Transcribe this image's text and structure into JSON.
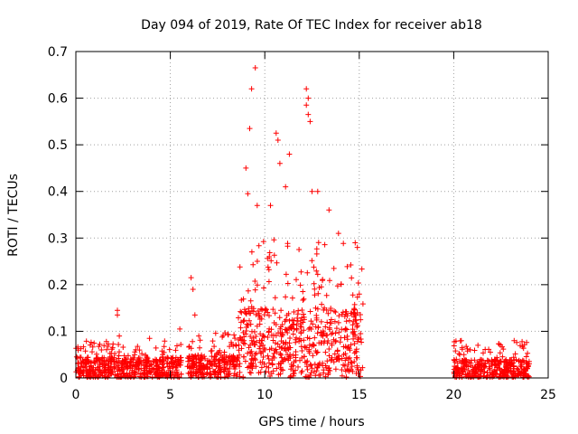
{
  "chart_data": {
    "type": "scatter",
    "title": "Day 094 of 2019, Rate Of TEC Index for receiver ab18",
    "xlabel": "GPS time / hours",
    "ylabel": "ROTI / TECUs",
    "xlim": [
      0,
      25
    ],
    "ylim": [
      0,
      0.7
    ],
    "xticks": [
      0,
      5,
      10,
      15,
      20,
      25
    ],
    "yticks": [
      0,
      0.1,
      0.2,
      0.3,
      0.4,
      0.5,
      0.6,
      0.7
    ],
    "xtick_labels": [
      "0",
      "5",
      "10",
      "15",
      "20",
      "25"
    ],
    "ytick_labels": [
      "0",
      "0.1",
      "0.2",
      "0.3",
      "0.4",
      "0.5",
      "0.6",
      "0.7"
    ],
    "grid": true,
    "marker": "plus",
    "marker_color": "#ff0000",
    "series": [
      {
        "name": "ab18",
        "segments": [
          {
            "x_start": 0.0,
            "x_end": 5.6,
            "base_max": 0.045,
            "peak_max": 0.08
          },
          {
            "x_start": 5.9,
            "x_end": 8.6,
            "base_max": 0.05,
            "peak_max": 0.1
          },
          {
            "x_start": 8.6,
            "x_end": 15.2,
            "base_max": 0.15,
            "peak_max": 0.3
          },
          {
            "x_start": 20.0,
            "x_end": 24.0,
            "base_max": 0.04,
            "peak_max": 0.08
          }
        ],
        "notable_points": [
          {
            "x": 2.2,
            "y": 0.145
          },
          {
            "x": 2.2,
            "y": 0.135
          },
          {
            "x": 2.3,
            "y": 0.09
          },
          {
            "x": 3.9,
            "y": 0.085
          },
          {
            "x": 5.5,
            "y": 0.105
          },
          {
            "x": 6.1,
            "y": 0.215
          },
          {
            "x": 6.2,
            "y": 0.19
          },
          {
            "x": 6.3,
            "y": 0.135
          },
          {
            "x": 9.0,
            "y": 0.45
          },
          {
            "x": 9.1,
            "y": 0.395
          },
          {
            "x": 9.2,
            "y": 0.535
          },
          {
            "x": 9.3,
            "y": 0.62
          },
          {
            "x": 9.5,
            "y": 0.665
          },
          {
            "x": 9.6,
            "y": 0.37
          },
          {
            "x": 10.3,
            "y": 0.37
          },
          {
            "x": 10.6,
            "y": 0.525
          },
          {
            "x": 10.7,
            "y": 0.51
          },
          {
            "x": 10.8,
            "y": 0.46
          },
          {
            "x": 11.3,
            "y": 0.48
          },
          {
            "x": 11.1,
            "y": 0.41
          },
          {
            "x": 12.2,
            "y": 0.62
          },
          {
            "x": 12.3,
            "y": 0.6
          },
          {
            "x": 12.2,
            "y": 0.585
          },
          {
            "x": 12.3,
            "y": 0.565
          },
          {
            "x": 12.4,
            "y": 0.55
          },
          {
            "x": 12.5,
            "y": 0.4
          },
          {
            "x": 12.8,
            "y": 0.4
          },
          {
            "x": 13.4,
            "y": 0.36
          },
          {
            "x": 13.9,
            "y": 0.31
          },
          {
            "x": 14.9,
            "y": 0.28
          },
          {
            "x": 15.0,
            "y": 0.18
          },
          {
            "x": 20.4,
            "y": 0.08
          },
          {
            "x": 23.2,
            "y": 0.08
          }
        ]
      }
    ]
  }
}
